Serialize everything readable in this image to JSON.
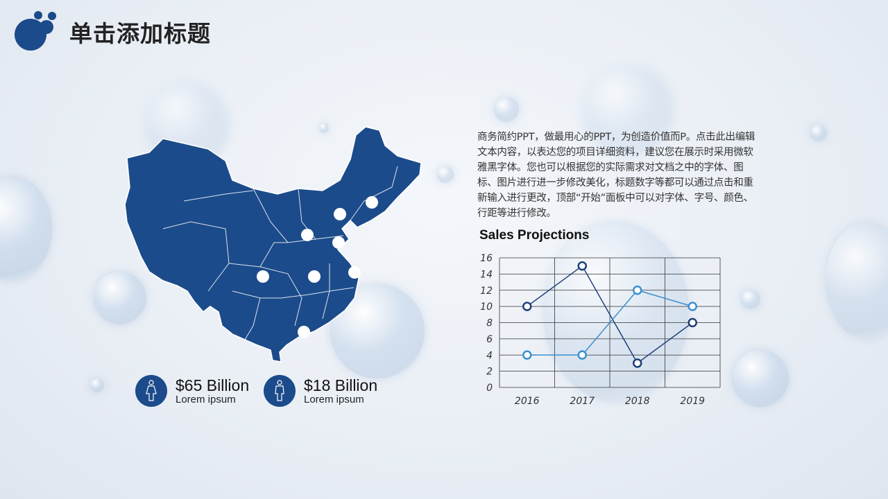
{
  "title": "单击添加标题",
  "paragraph": "商务简约PPT，做最用心的PPT，为创造价值而P。点击此出编辑文本内容，以表达您的项目详细资料，建议您在展示时采用微软雅黑字体。您也可以根据您的实际需求对文档之中的字体、图标、图片进行进一步修改美化，标题数字等都可以通过点击和重新输入进行更改，顶部“开始”面板中可以对字体、字号、颜色、行距等进行修改。",
  "stats": [
    {
      "value": "$65 Billion",
      "label": "Lorem ipsum",
      "icon": "female-person-icon"
    },
    {
      "value": "$18 Billion",
      "label": "Lorem ipsum",
      "icon": "male-person-icon"
    }
  ],
  "colors": {
    "brand": "#1b4b8a",
    "series_dark": "#1f3f78",
    "series_light": "#3a8fcf"
  },
  "chart_data": {
    "type": "line",
    "title": "Sales Projections",
    "categories": [
      "2016",
      "2017",
      "2018",
      "2019"
    ],
    "series": [
      {
        "values": [
          10,
          15,
          3,
          8
        ],
        "color": "#1f3f78"
      },
      {
        "values": [
          4,
          4,
          12,
          10
        ],
        "color": "#3a8fcf"
      }
    ],
    "ylim": [
      0,
      16
    ],
    "yticks": [
      "0",
      "2",
      "4",
      "6",
      "8",
      "10",
      "12",
      "14",
      "16"
    ],
    "grid": true
  }
}
